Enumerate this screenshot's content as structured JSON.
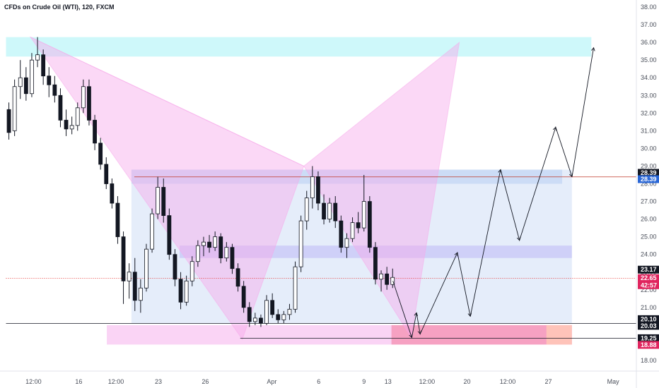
{
  "header": {
    "title": "CFDs on Crude Oil (WTI), 120, FXCM"
  },
  "colors": {
    "up": "#ffffff",
    "down": "#131722",
    "wick": "#131722",
    "pattern": "#f7a8ea",
    "top_zone": "#a6f2f5",
    "mid_zone": "#c7c6f7",
    "blue_box": "#d3e1f7",
    "red_zone": "#f598b8",
    "pink_zone": "#f9c9f2",
    "red_badge": "#e0245e",
    "dark_badge": "#131722",
    "gray_badge": "#787b86",
    "blue_badge": "#2a67d6",
    "price_line": "#e53935"
  },
  "chart_data": {
    "type": "candlestick",
    "title": "CFDs on Crude Oil (WTI), 120, FXCM",
    "ylim": [
      17.4,
      38.4
    ],
    "y_ticks": [
      "18.00",
      "19.00",
      "20.00",
      "21.00",
      "22.00",
      "23.00",
      "24.00",
      "25.00",
      "26.00",
      "27.00",
      "28.00",
      "29.00",
      "30.00",
      "31.00",
      "32.00",
      "33.00",
      "34.00",
      "35.00",
      "36.00",
      "37.00",
      "38.00"
    ],
    "x_ticks": [
      "12:00",
      "16",
      "12:00",
      "23",
      "26",
      "Apr",
      "6",
      "9",
      "13",
      "12:00",
      "20",
      "12:00",
      "27",
      "May"
    ],
    "price_badges": [
      {
        "label": "28.39",
        "value": 28.62,
        "kind": "dark"
      },
      {
        "label": "28.39",
        "value": 28.26,
        "kind": "blue"
      },
      {
        "label": "23.17",
        "value": 23.14,
        "kind": "dark"
      },
      {
        "label": "22.65",
        "value": 22.66,
        "kind": "red"
      },
      {
        "label": "42:57",
        "value": 22.26,
        "kind": "red"
      },
      {
        "label": "20.10",
        "value": 20.34,
        "kind": "dark"
      },
      {
        "label": "20.03",
        "value": 19.96,
        "kind": "dark"
      },
      {
        "label": "19.25",
        "value": 19.26,
        "kind": "dark"
      },
      {
        "label": "18.88",
        "value": 18.88,
        "kind": "red"
      }
    ],
    "series": [
      {
        "name": "",
        "values": [
          [
            32.2,
            32.6,
            30.5,
            30.9
          ],
          [
            31.0,
            33.9,
            30.7,
            33.5
          ],
          [
            33.5,
            35.0,
            32.8,
            34.0
          ],
          [
            34.0,
            34.6,
            32.7,
            33.1
          ],
          [
            33.1,
            35.4,
            32.9,
            35.0
          ],
          [
            35.0,
            36.3,
            34.6,
            35.3
          ],
          [
            35.3,
            35.6,
            33.6,
            34.1
          ],
          [
            34.1,
            34.6,
            32.9,
            33.6
          ],
          [
            33.6,
            34.1,
            32.6,
            33.0
          ],
          [
            33.0,
            33.4,
            31.2,
            31.6
          ],
          [
            31.6,
            32.2,
            30.7,
            31.1
          ],
          [
            31.1,
            31.8,
            30.8,
            31.3
          ],
          [
            31.3,
            32.6,
            31.0,
            32.3
          ],
          [
            32.3,
            33.9,
            32.0,
            33.5
          ],
          [
            33.5,
            33.9,
            31.3,
            31.6
          ],
          [
            31.6,
            31.9,
            29.9,
            30.3
          ],
          [
            30.3,
            30.6,
            28.8,
            29.1
          ],
          [
            29.1,
            29.5,
            27.7,
            28.0
          ],
          [
            28.0,
            28.3,
            26.6,
            26.9
          ],
          [
            26.9,
            27.3,
            24.6,
            25.0
          ],
          [
            25.0,
            25.3,
            21.2,
            22.5
          ],
          [
            22.5,
            23.5,
            21.5,
            23.0
          ],
          [
            23.0,
            23.8,
            20.8,
            21.4
          ],
          [
            21.4,
            22.6,
            20.7,
            22.1
          ],
          [
            22.1,
            24.6,
            21.9,
            24.3
          ],
          [
            24.3,
            26.6,
            24.1,
            26.3
          ],
          [
            26.3,
            28.4,
            26.0,
            27.8
          ],
          [
            27.8,
            28.3,
            25.8,
            26.2
          ],
          [
            26.2,
            26.6,
            23.7,
            24.0
          ],
          [
            24.0,
            24.3,
            22.2,
            22.6
          ],
          [
            22.6,
            23.0,
            20.9,
            21.3
          ],
          [
            21.3,
            22.8,
            21.1,
            22.5
          ],
          [
            22.5,
            23.9,
            22.2,
            23.6
          ],
          [
            23.6,
            24.8,
            23.3,
            24.5
          ],
          [
            24.5,
            25.0,
            23.9,
            24.7
          ],
          [
            24.7,
            25.1,
            24.1,
            24.4
          ],
          [
            24.4,
            25.3,
            24.2,
            25.0
          ],
          [
            25.0,
            25.2,
            23.5,
            23.8
          ],
          [
            23.8,
            24.7,
            23.6,
            24.4
          ],
          [
            24.4,
            24.6,
            22.9,
            23.2
          ],
          [
            23.2,
            23.5,
            21.9,
            22.2
          ],
          [
            22.2,
            22.5,
            20.7,
            21.0
          ],
          [
            21.0,
            21.3,
            19.9,
            20.2
          ],
          [
            20.2,
            20.7,
            20.0,
            20.4
          ],
          [
            20.4,
            20.6,
            19.9,
            20.1
          ],
          [
            20.1,
            21.7,
            20.0,
            21.4
          ],
          [
            21.4,
            21.8,
            20.4,
            20.6
          ],
          [
            20.6,
            20.9,
            20.1,
            20.3
          ],
          [
            20.3,
            20.8,
            20.1,
            20.6
          ],
          [
            20.6,
            21.2,
            20.3,
            20.9
          ],
          [
            20.9,
            23.6,
            20.7,
            23.3
          ],
          [
            23.3,
            26.2,
            23.0,
            25.9
          ],
          [
            25.9,
            27.6,
            25.4,
            27.2
          ],
          [
            27.2,
            29.0,
            26.6,
            28.4
          ],
          [
            28.4,
            28.7,
            26.5,
            26.9
          ],
          [
            26.9,
            27.4,
            25.7,
            26.0
          ],
          [
            26.0,
            27.2,
            25.8,
            26.9
          ],
          [
            26.9,
            27.3,
            25.5,
            25.9
          ],
          [
            25.9,
            26.2,
            24.1,
            24.4
          ],
          [
            24.4,
            25.2,
            23.8,
            24.9
          ],
          [
            24.9,
            26.1,
            24.7,
            25.8
          ],
          [
            25.8,
            26.4,
            25.2,
            25.5
          ],
          [
            25.5,
            28.5,
            25.3,
            27.0
          ],
          [
            27.0,
            27.3,
            24.1,
            24.4
          ],
          [
            24.4,
            24.7,
            22.3,
            22.6
          ],
          [
            22.6,
            23.1,
            21.9,
            22.9
          ],
          [
            22.9,
            23.3,
            22.0,
            22.3
          ],
          [
            22.3,
            23.2,
            22.1,
            22.7
          ]
        ]
      }
    ],
    "arrow_path": [
      {
        "time": 67.55,
        "value": 22.5
      },
      {
        "time": 70.85,
        "value": 19.3
      },
      {
        "time": 71.67,
        "value": 20.7
      },
      {
        "time": 72.31,
        "value": 19.5
      },
      {
        "time": 78.81,
        "value": 24.1
      },
      {
        "time": 81.07,
        "value": 20.5
      },
      {
        "time": 86.35,
        "value": 28.8
      },
      {
        "time": 89.65,
        "value": 24.8
      },
      {
        "time": 95.97,
        "value": 31.2
      },
      {
        "time": 98.82,
        "value": 28.4
      },
      {
        "time": 102.6,
        "value": 35.7
      }
    ],
    "pattern_points": [
      {
        "time": 4.27,
        "value": 36.3
      },
      {
        "time": 41.25,
        "value": 19.2
      },
      {
        "time": 52.0,
        "value": 29.0
      },
      {
        "time": 79.15,
        "value": 36.0
      },
      {
        "time": 70.75,
        "value": 19.3
      }
    ],
    "zones": [
      {
        "name": "top",
        "value_min": 35.2,
        "value_max": 36.3,
        "time_min": 0.0,
        "time_max": 102.2
      },
      {
        "name": "blue-box",
        "value_min": 20.1,
        "value_max": 28.8,
        "time_min": 21.9,
        "time_max": 98.8
      },
      {
        "name": "blue-strip",
        "value_min": 28.0,
        "value_max": 28.8,
        "time_min": 21.9,
        "time_max": 97.1
      },
      {
        "name": "mid",
        "value_min": 23.8,
        "value_max": 24.5,
        "time_min": 30.3,
        "time_max": 98.8
      },
      {
        "name": "pink-bottom",
        "value_min": 18.9,
        "value_max": 20.0,
        "time_min": 17.6,
        "time_max": 98.8
      },
      {
        "name": "red",
        "value_min": 18.9,
        "value_max": 20.0,
        "time_min": 67.3,
        "time_max": 98.8
      }
    ],
    "lines": [
      {
        "name": "resistance",
        "value": 28.39,
        "time_min": 22.4,
        "time_max": 110.0
      },
      {
        "name": "support",
        "value": 20.1,
        "time_min": 0.0,
        "time_max": 110.0
      },
      {
        "name": "low",
        "value": 19.26,
        "time_min": 40.9,
        "time_max": 110.0
      },
      {
        "name": "price",
        "value": 22.65,
        "time_min": 0.0,
        "time_max": 110.0
      }
    ]
  }
}
